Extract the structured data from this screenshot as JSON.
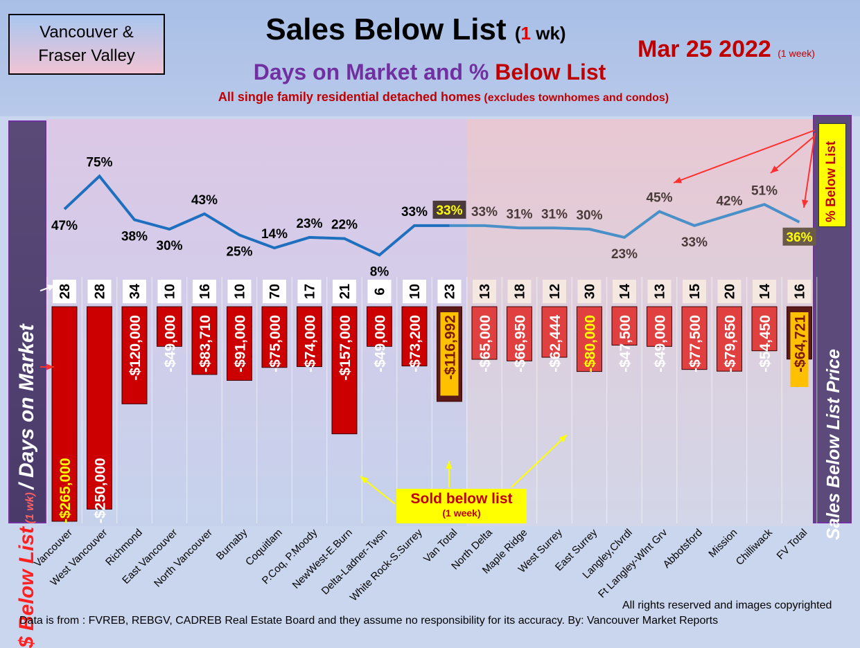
{
  "header": {
    "region": [
      "Vancouver &",
      "Fraser Valley"
    ],
    "title": "Sales Below List",
    "title_paren_open": "(",
    "title_paren_num": "1",
    "title_paren_rest": " wk)",
    "subtitle_part1": "Days on Market and % ",
    "subtitle_part2": "Below List",
    "note": "All single family residential detached homes",
    "note_small": " (excludes townhomes and condos)",
    "date": "Mar 25  2022",
    "date_small": "(1 week)"
  },
  "side_left_label_1": "$ Below List",
  "side_left_label_2": " (1 wk) ",
  "side_left_label_3": "/ Days on Market",
  "side_right_label": "Sales Below List Price",
  "pct_below_label": "% Below List",
  "callout": {
    "line1": "Sold below list",
    "line2": "(1 week)"
  },
  "footer": {
    "rights": "All rights reserved and  images copyrighted",
    "source": "Data is from : FVREB, REBGV, CADREB Real Estate Board and they assume no responsibility for its accuracy. By: Vancouver Market Reports"
  },
  "colors": {
    "bar": "#cc0000",
    "bar_fv": "#e04040",
    "total_bar": "#5a1a1a",
    "line_left": "#1f6fbf",
    "line_right": "#4a90c8"
  },
  "chart_data": {
    "type": "bar",
    "categories": [
      "Vancouver",
      "West Vancouver",
      "Richmond",
      "East Vancouver",
      "North Vancouver",
      "Burnaby",
      "Coquitlam",
      "P.Coq, P.Moody",
      "NewWest-E.Burn",
      "Delta-Ladner-Twsn",
      "White Rock-S.Surrey",
      "Van Total",
      "North Delta",
      "Maple Ridge",
      "West Surrey",
      "East Surrey",
      "Langley,Clvrdl",
      "Ft Langley-Wlnt Grv",
      "Abbotsford",
      "Mission",
      "Chilliwack",
      "FV Total"
    ],
    "days_on_market": [
      28,
      28,
      34,
      10,
      16,
      10,
      70,
      17,
      21,
      6,
      10,
      23,
      13,
      18,
      12,
      30,
      14,
      13,
      15,
      20,
      14,
      16
    ],
    "pct_below_list": [
      47,
      75,
      38,
      30,
      43,
      25,
      14,
      23,
      22,
      8,
      33,
      33,
      33,
      31,
      31,
      30,
      23,
      45,
      33,
      42,
      51,
      36
    ],
    "below_list_amount": [
      265000,
      250000,
      120000,
      49000,
      83710,
      91000,
      75000,
      74000,
      157000,
      49000,
      73200,
      116992,
      65000,
      66950,
      62444,
      80000,
      47500,
      49000,
      77500,
      79650,
      54450,
      64721
    ],
    "amount_labels": [
      "-$265,000",
      "-$250,000",
      "-$120,000",
      "-$49,000",
      "-$83,710",
      "-$91,000",
      "-$75,000",
      "-$74,000",
      "-$157,000",
      "-$49,000",
      "-$73,200",
      "-$116,992",
      "-$65,000",
      "-$66,950",
      "-$62,444",
      "-$80,000",
      "-$47,500",
      "-$49,000",
      "-$77,500",
      "-$79,650",
      "-$54,450",
      "-$64,721"
    ],
    "pct_labels": [
      "47%",
      "75%",
      "38%",
      "30%",
      "43%",
      "25%",
      "14%",
      "23%",
      "22%",
      "8%",
      "33%",
      "33%",
      "33%",
      "31%",
      "31%",
      "30%",
      "23%",
      "45%",
      "33%",
      "42%",
      "51%",
      "36%"
    ]
  }
}
